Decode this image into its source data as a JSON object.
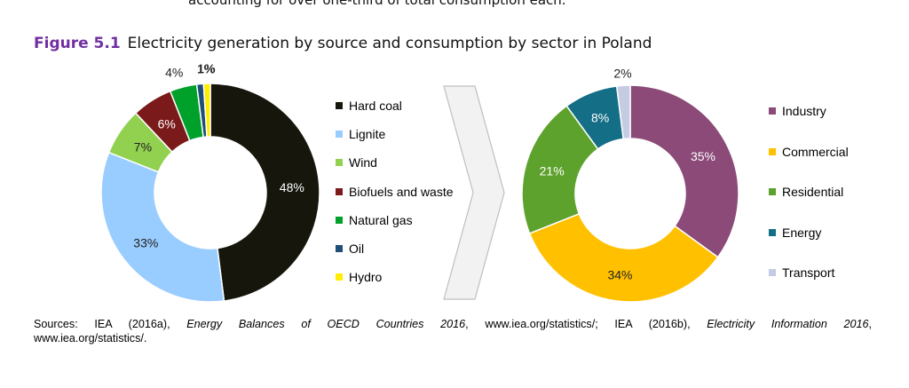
{
  "header_fragment": "accounting for over one-third of total consumption each.",
  "figure": {
    "number": "Figure 5.1",
    "title": "Electricity generation by source and consumption by sector in Poland"
  },
  "chart_data": [
    {
      "type": "pie",
      "variant": "donut",
      "categories": [
        "Hard coal",
        "Lignite",
        "Wind",
        "Biofuels and waste",
        "Natural gas",
        "Oil",
        "Hydro"
      ],
      "values": [
        48,
        33,
        7,
        6,
        4,
        1,
        1
      ],
      "labels": [
        "48%",
        "33%",
        "7%",
        "6%",
        "4%",
        "1%",
        "1%"
      ],
      "colors": [
        "#16160c",
        "#99ccff",
        "#92d050",
        "#7b1a1a",
        "#00a12a",
        "#1f4e79",
        "#ffee00"
      ],
      "label_colors": [
        "#ffffff",
        "#222222",
        "#222222",
        "#ffffff",
        "#222222",
        "#222222",
        "#222222"
      ],
      "legend_position": "right"
    },
    {
      "type": "pie",
      "variant": "donut",
      "categories": [
        "Industry",
        "Commercial",
        "Residential",
        "Energy",
        "Transport"
      ],
      "values": [
        35,
        34,
        21,
        8,
        2
      ],
      "labels": [
        "35%",
        "34%",
        "21%",
        "8%",
        "2%"
      ],
      "colors": [
        "#8b4a78",
        "#ffc000",
        "#5ea22e",
        "#136e86",
        "#c5cbe2"
      ],
      "label_colors": [
        "#ffffff",
        "#222222",
        "#ffffff",
        "#ffffff",
        "#222222"
      ],
      "legend_position": "right"
    }
  ],
  "sources": {
    "line1": [
      {
        "text": "Sources:"
      },
      {
        "text": "IEA"
      },
      {
        "text": "(2016a),"
      },
      {
        "text": "Energy",
        "italic": true
      },
      {
        "text": "Balances",
        "italic": true
      },
      {
        "text": "of",
        "italic": true
      },
      {
        "text": "OECD",
        "italic": true
      },
      {
        "text": "Countries",
        "italic": true
      },
      {
        "text": "2016",
        "italic": true
      },
      {
        "text": ","
      },
      {
        "text": "www.iea.org/statistics/;"
      },
      {
        "text": "IEA"
      },
      {
        "text": "(2016b),"
      },
      {
        "text": "Electricity",
        "italic": true
      },
      {
        "text": "Information",
        "italic": true
      },
      {
        "text": "2016",
        "italic": true
      },
      {
        "text": ","
      }
    ],
    "line2": "www.iea.org/statistics/."
  }
}
